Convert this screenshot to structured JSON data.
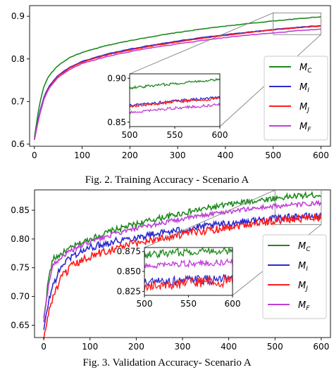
{
  "colors": {
    "mc": "#1e8a1e",
    "mi": "#2a2ad0",
    "mj": "#ff1a1a",
    "mf": "#c040d8",
    "zoom_box": "#808080"
  },
  "figure1": {
    "caption": "Fig. 2.   Training Accuracy - Scenario A",
    "chart_data": {
      "type": "line",
      "title": "",
      "xlabel": "",
      "ylabel": "",
      "xlim": [
        -10,
        620
      ],
      "ylim": [
        0.595,
        0.925
      ],
      "xticks": [
        0,
        100,
        200,
        300,
        400,
        500,
        600
      ],
      "yticks": [
        0.6,
        0.7,
        0.8,
        0.9
      ],
      "legend_position": "lower-right",
      "series": [
        {
          "name": "M_C",
          "label_main": "M",
          "label_sub": "C",
          "color_key": "mc",
          "style": "smooth",
          "x": [
            0,
            10,
            20,
            30,
            50,
            75,
            100,
            150,
            200,
            250,
            300,
            350,
            400,
            450,
            500,
            550,
            600
          ],
          "y": [
            0.615,
            0.69,
            0.735,
            0.76,
            0.785,
            0.804,
            0.815,
            0.831,
            0.843,
            0.853,
            0.862,
            0.87,
            0.877,
            0.883,
            0.889,
            0.894,
            0.899
          ]
        },
        {
          "name": "M_I",
          "label_main": "M",
          "label_sub": "I",
          "color_key": "mi",
          "style": "smooth",
          "x": [
            0,
            10,
            20,
            30,
            50,
            75,
            100,
            150,
            200,
            250,
            300,
            350,
            400,
            450,
            500,
            550,
            600
          ],
          "y": [
            0.61,
            0.67,
            0.71,
            0.735,
            0.762,
            0.781,
            0.794,
            0.811,
            0.823,
            0.833,
            0.842,
            0.85,
            0.857,
            0.863,
            0.869,
            0.874,
            0.878
          ]
        },
        {
          "name": "M_J",
          "label_main": "M",
          "label_sub": "J",
          "color_key": "mj",
          "style": "smooth",
          "x": [
            0,
            10,
            20,
            30,
            50,
            75,
            100,
            150,
            200,
            250,
            300,
            350,
            400,
            450,
            500,
            550,
            600
          ],
          "y": [
            0.61,
            0.665,
            0.706,
            0.732,
            0.76,
            0.779,
            0.792,
            0.809,
            0.821,
            0.831,
            0.84,
            0.848,
            0.855,
            0.862,
            0.868,
            0.873,
            0.877
          ]
        },
        {
          "name": "M_F",
          "label_main": "M",
          "label_sub": "F",
          "color_key": "mf",
          "style": "smooth",
          "x": [
            0,
            10,
            20,
            30,
            50,
            75,
            100,
            150,
            200,
            250,
            300,
            350,
            400,
            450,
            500,
            550,
            600
          ],
          "y": [
            0.61,
            0.665,
            0.705,
            0.73,
            0.757,
            0.776,
            0.789,
            0.805,
            0.817,
            0.827,
            0.835,
            0.843,
            0.85,
            0.856,
            0.861,
            0.866,
            0.87
          ]
        }
      ],
      "inset": {
        "xlim": [
          500,
          600
        ],
        "ylim": [
          0.845,
          0.905
        ],
        "xticks": [
          500,
          550,
          600
        ],
        "yticks": [
          0.85,
          0.9
        ],
        "source_xlim": [
          500,
          600
        ],
        "source_ylim": [
          0.857,
          0.908
        ]
      }
    }
  },
  "figure2": {
    "caption": "Fig. 3.   Validation Accuracy- Scenario A",
    "chart_data": {
      "type": "line",
      "title": "",
      "xlabel": "",
      "ylabel": "",
      "xlim": [
        -20,
        620
      ],
      "ylim": [
        0.6285,
        0.8855
      ],
      "xticks": [
        0,
        100,
        200,
        300,
        400,
        500,
        600
      ],
      "yticks": [
        0.65,
        0.7,
        0.75,
        0.8,
        0.85
      ],
      "legend_position": "lower-right",
      "series": [
        {
          "name": "M_C",
          "label_main": "M",
          "label_sub": "C",
          "color_key": "mc",
          "style": "noisy",
          "noise": 0.005,
          "x": [
            0,
            10,
            20,
            40,
            60,
            100,
            150,
            200,
            250,
            300,
            350,
            400,
            450,
            500,
            550,
            600
          ],
          "y": [
            0.66,
            0.73,
            0.765,
            0.775,
            0.785,
            0.8,
            0.815,
            0.826,
            0.836,
            0.845,
            0.853,
            0.86,
            0.866,
            0.871,
            0.875,
            0.877
          ]
        },
        {
          "name": "M_I",
          "label_main": "M",
          "label_sub": "I",
          "color_key": "mi",
          "style": "noisy",
          "noise": 0.006,
          "x": [
            0,
            10,
            20,
            40,
            60,
            100,
            150,
            200,
            250,
            300,
            350,
            400,
            450,
            500,
            550,
            600
          ],
          "y": [
            0.64,
            0.69,
            0.72,
            0.755,
            0.77,
            0.785,
            0.796,
            0.803,
            0.81,
            0.816,
            0.822,
            0.827,
            0.832,
            0.836,
            0.839,
            0.84
          ]
        },
        {
          "name": "M_J",
          "label_main": "M",
          "label_sub": "J",
          "color_key": "mj",
          "style": "noisy",
          "noise": 0.007,
          "x": [
            0,
            10,
            20,
            40,
            60,
            100,
            150,
            200,
            250,
            300,
            350,
            400,
            450,
            500,
            550,
            600
          ],
          "y": [
            0.625,
            0.67,
            0.7,
            0.735,
            0.752,
            0.77,
            0.783,
            0.793,
            0.801,
            0.808,
            0.815,
            0.821,
            0.827,
            0.832,
            0.836,
            0.838
          ]
        },
        {
          "name": "M_F",
          "label_main": "M",
          "label_sub": "F",
          "color_key": "mf",
          "style": "noisy",
          "noise": 0.004,
          "x": [
            0,
            10,
            20,
            40,
            60,
            100,
            150,
            200,
            250,
            300,
            350,
            400,
            450,
            500,
            550,
            600
          ],
          "y": [
            0.655,
            0.72,
            0.755,
            0.77,
            0.78,
            0.795,
            0.808,
            0.818,
            0.827,
            0.835,
            0.842,
            0.848,
            0.853,
            0.857,
            0.86,
            0.862
          ]
        }
      ],
      "inset": {
        "xlim": [
          500,
          600
        ],
        "ylim": [
          0.82,
          0.88
        ],
        "xticks": [
          500,
          550,
          600
        ],
        "yticks": [
          0.825,
          0.85,
          0.875
        ],
        "source_xlim": [
          500,
          600
        ],
        "source_ylim": [
          0.825,
          0.885
        ]
      }
    }
  }
}
